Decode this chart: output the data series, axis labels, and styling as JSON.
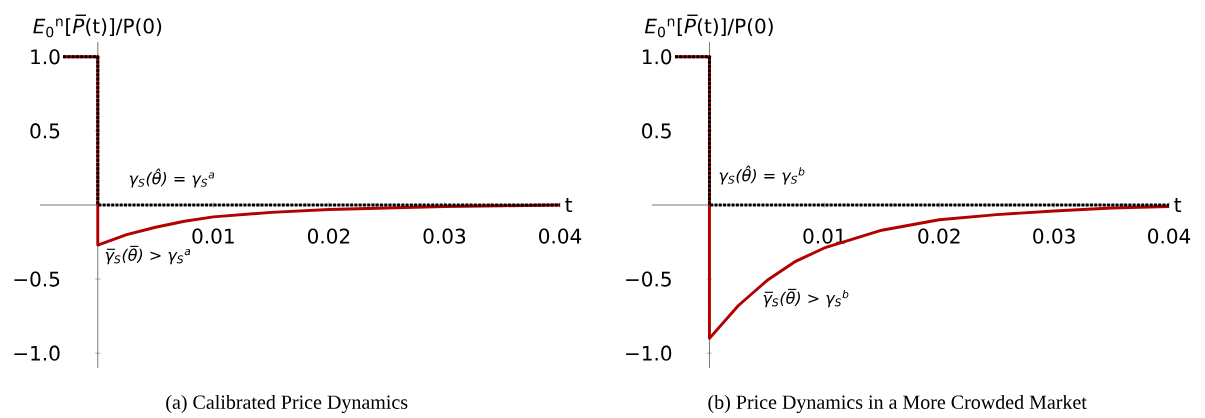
{
  "chart_data": [
    {
      "type": "line",
      "ylabel": "*E*$_{0}$$^{n}$[*P̅*(t)]/P(0)",
      "xlabel": "t",
      "xlim": [
        -0.005,
        0.04
      ],
      "ylim": [
        -1.1,
        1.1
      ],
      "xticks": [
        0.01,
        0.02,
        0.03,
        0.04
      ],
      "yticks": [
        {
          "value": -1.0,
          "label": "−1.0"
        },
        {
          "value": -0.5,
          "label": "−0.5"
        },
        {
          "value": 0.5,
          "label": "0.5"
        },
        {
          "value": 1.0,
          "label": "1.0"
        }
      ],
      "series": [
        {
          "color": "#b30000",
          "line_style": "solid",
          "x": [
            -0.003,
            0,
            0,
            0.0025,
            0.005,
            0.0075,
            0.01,
            0.015,
            0.02,
            0.025,
            0.03,
            0.035,
            0.04
          ],
          "values": [
            1.0,
            1.0,
            -0.27,
            -0.2,
            -0.15,
            -0.11,
            -0.08,
            -0.05,
            -0.03,
            -0.02,
            -0.01,
            -0.005,
            0
          ]
        },
        {
          "color": "#000000",
          "line_style": "dotted",
          "x": [
            -0.003,
            0,
            0,
            0.04
          ],
          "values": [
            1.0,
            1.0,
            0,
            0
          ]
        }
      ],
      "annotations": [
        "γ$_{S}$(θ̂) = γ$_{S}$$^{a}$",
        "γ̅$_{S}$(θ̅) > γ$_{S}$$^{a}$",
        "(a)  Calibrated Price Dynamics"
      ]
    },
    {
      "type": "line",
      "ylabel": "*E*$_{0}$$^{n}$[*P̅*(t)]/P(0)",
      "xlabel": "t",
      "xlim": [
        -0.005,
        0.04
      ],
      "ylim": [
        -1.1,
        1.1
      ],
      "xticks": [
        0.01,
        0.02,
        0.03,
        0.04
      ],
      "yticks": [
        {
          "value": -1.0,
          "label": "−1.0"
        },
        {
          "value": -0.5,
          "label": "−0.5"
        },
        {
          "value": 0.5,
          "label": "0.5"
        },
        {
          "value": 1.0,
          "label": "1.0"
        }
      ],
      "series": [
        {
          "color": "#b30000",
          "line_style": "solid",
          "x": [
            -0.003,
            0,
            0,
            0.0025,
            0.005,
            0.0075,
            0.01,
            0.015,
            0.02,
            0.025,
            0.03,
            0.035,
            0.04
          ],
          "values": [
            1.0,
            1.0,
            -0.9,
            -0.68,
            -0.51,
            -0.38,
            -0.29,
            -0.17,
            -0.1,
            -0.065,
            -0.04,
            -0.02,
            -0.01
          ]
        },
        {
          "color": "#000000",
          "line_style": "dotted",
          "x": [
            -0.003,
            0,
            0,
            0.04
          ],
          "values": [
            1.0,
            1.0,
            0,
            0
          ]
        }
      ],
      "annotations": [
        "γ$_{S}$(θ̂) = γ$_{S}$$^{b}$",
        "γ̅$_{S}$(θ̅) > γ$_{S}$$^{b}$",
        "(b)  Price Dynamics in a More Crowded Market"
      ]
    }
  ]
}
